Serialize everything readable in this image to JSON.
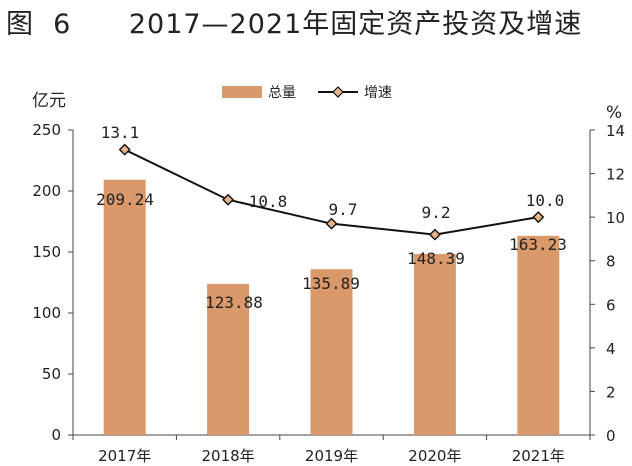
{
  "figure": {
    "title": "图  6      2017—2021年固定资产投资及增速"
  },
  "chart_data": {
    "type": "bar",
    "categories": [
      "2017年",
      "2018年",
      "2019年",
      "2020年",
      "2021年"
    ],
    "series": [
      {
        "name": "总量",
        "type": "bar",
        "axis": "left",
        "color": "#d9996a",
        "values": [
          209.24,
          123.88,
          135.89,
          148.39,
          163.23
        ],
        "labels": [
          "209.24",
          "123.88",
          "135.89",
          "148.39",
          "163.23"
        ]
      },
      {
        "name": "增速",
        "type": "line",
        "axis": "right",
        "color": "#111111",
        "marker_color": "#e8b48a",
        "values": [
          13.1,
          10.8,
          9.7,
          9.2,
          10.0
        ],
        "labels": [
          "13.1",
          "10.8",
          "9.7",
          "9.2",
          "10.0"
        ]
      }
    ],
    "y_left": {
      "unit": "亿元",
      "min": 0,
      "max": 250,
      "ticks": [
        0,
        50,
        100,
        150,
        200,
        250
      ]
    },
    "y_right": {
      "unit": "%",
      "min": 0,
      "max": 14,
      "ticks": [
        0,
        2,
        4,
        6,
        8,
        10,
        12,
        14
      ]
    },
    "legend": {
      "placement": "top-center"
    },
    "grid": false
  }
}
